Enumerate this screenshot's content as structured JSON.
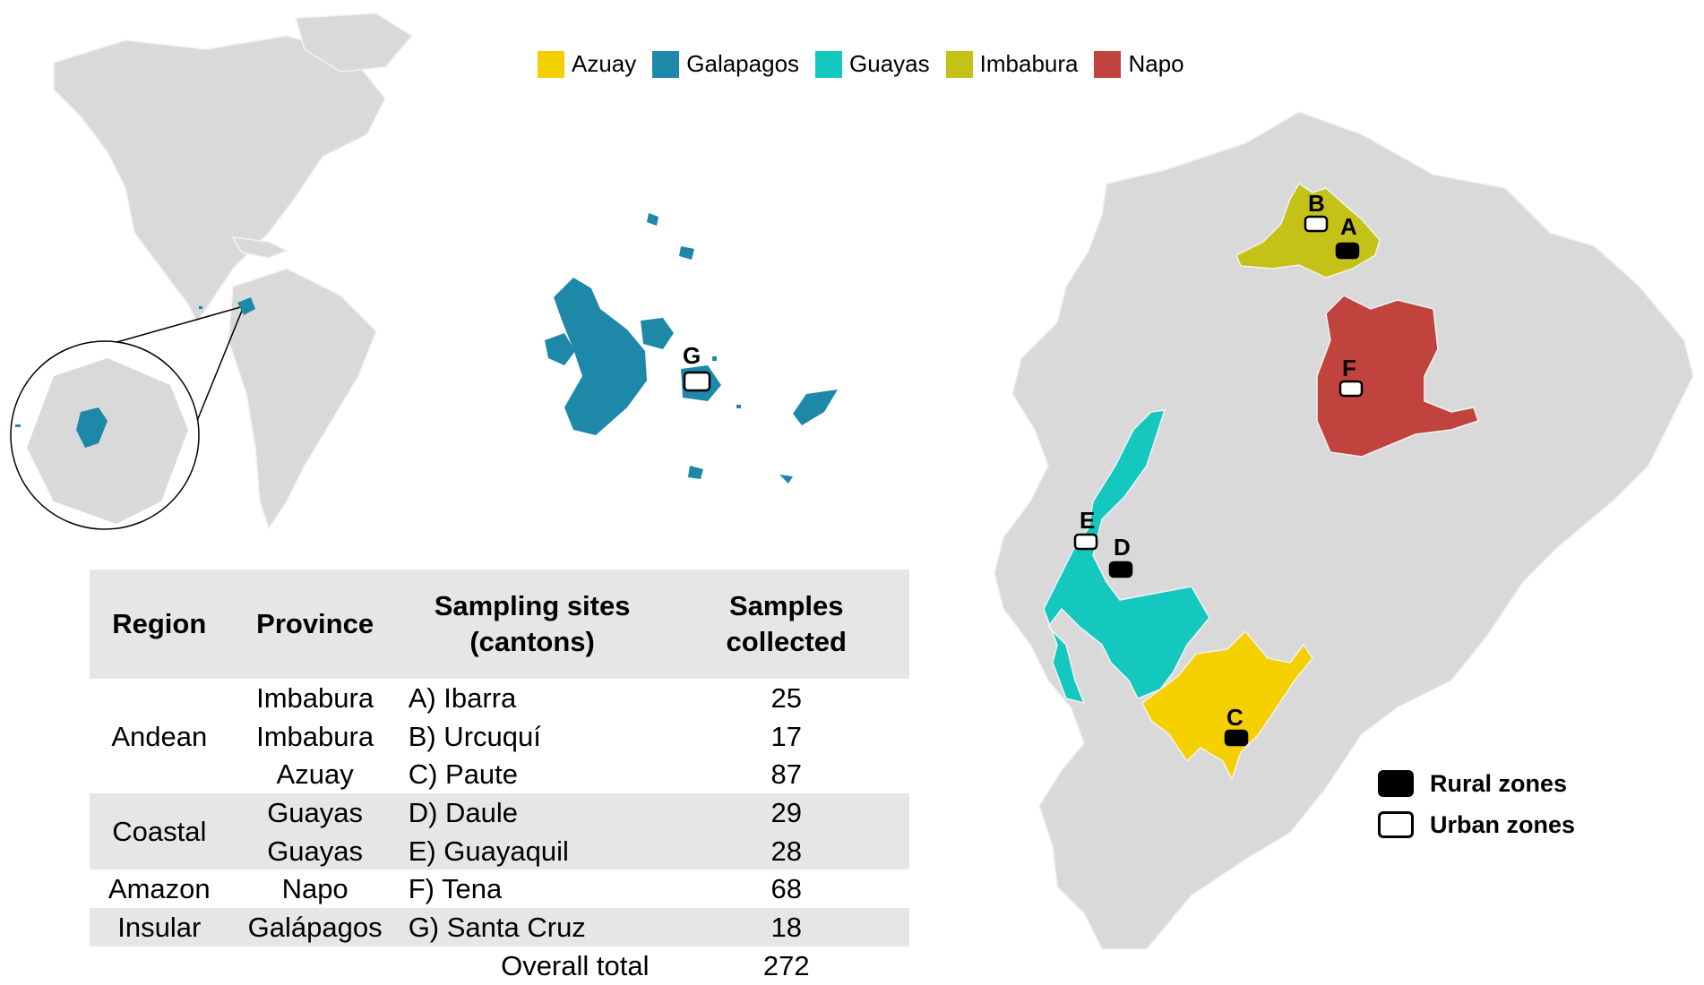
{
  "legend": {
    "provinces": [
      {
        "name": "Azuay",
        "color": "#f5d000"
      },
      {
        "name": "Galapagos",
        "color": "#1e88a8"
      },
      {
        "name": "Guayas",
        "color": "#14c8c0"
      },
      {
        "name": "Imbabura",
        "color": "#c4c216"
      },
      {
        "name": "Napo",
        "color": "#c0433d"
      }
    ],
    "zones": [
      {
        "label": "Rural zones",
        "type": "rural"
      },
      {
        "label": "Urban zones",
        "type": "urban"
      }
    ]
  },
  "colors": {
    "land": "#d9d9d9",
    "border": "#f2f2f2"
  },
  "table": {
    "headers": [
      "Region",
      "Province",
      "Sampling sites\n(cantons)",
      "Samples\ncollected"
    ],
    "rows": [
      {
        "region": "Andean",
        "province": "Imbabura",
        "site": "A) Ibarra",
        "samples": "25"
      },
      {
        "region": "",
        "province": "Imbabura",
        "site": "B) Urcuquí",
        "samples": "17"
      },
      {
        "region": "",
        "province": "Azuay",
        "site": "C) Paute",
        "samples": "87"
      },
      {
        "region": "Coastal",
        "province": "Guayas",
        "site": "D) Daule",
        "samples": "29"
      },
      {
        "region": "",
        "province": "Guayas",
        "site": "E) Guayaquil",
        "samples": "28"
      },
      {
        "region": "Amazon",
        "province": "Napo",
        "site": "F) Tena",
        "samples": "68"
      },
      {
        "region": "Insular",
        "province": "Galápagos",
        "site": "G) Santa Cruz",
        "samples": "18"
      }
    ],
    "total_label": "Overall total",
    "total_value": "272"
  },
  "markers": [
    {
      "id": "A",
      "zone": "rural"
    },
    {
      "id": "B",
      "zone": "urban"
    },
    {
      "id": "C",
      "zone": "rural"
    },
    {
      "id": "D",
      "zone": "rural"
    },
    {
      "id": "E",
      "zone": "urban"
    },
    {
      "id": "F",
      "zone": "urban"
    },
    {
      "id": "G",
      "zone": "urban"
    }
  ]
}
